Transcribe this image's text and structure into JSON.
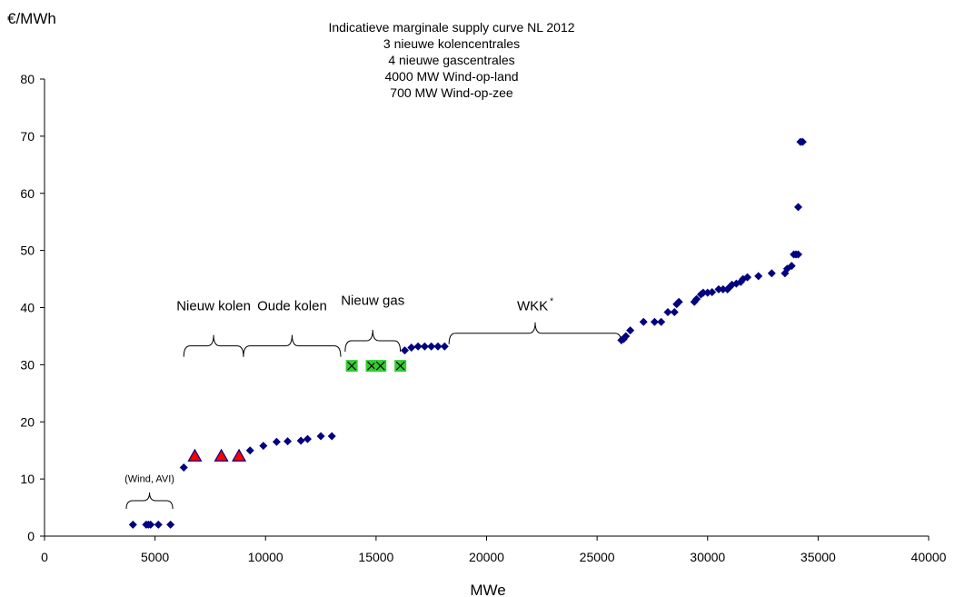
{
  "chart_data": {
    "type": "scatter",
    "title_lines": [
      "Indicatieve marginale supply curve NL 2012",
      "3 nieuwe kolencentrales",
      "4 nieuwe gascentrales",
      "4000 MW Wind-op-land",
      "700 MW Wind-op-zee"
    ],
    "xlabel": "MWe",
    "ylabel": "€/MWh",
    "xlim": [
      0,
      40000
    ],
    "ylim": [
      0,
      80
    ],
    "xticks": [
      "0",
      "5000",
      "10000",
      "15000",
      "20000",
      "25000",
      "30000",
      "35000",
      "40000"
    ],
    "yticks": [
      "0",
      "10",
      "20",
      "30",
      "40",
      "50",
      "60",
      "70",
      "80"
    ],
    "grid": false,
    "legend": "none",
    "colors": {
      "existing": "#000080",
      "new_coal": "#ff0000",
      "new_gas": "#33cc33",
      "new_coal_outline": "#000080"
    },
    "series": [
      {
        "marker": "diamond",
        "color": "#000080",
        "points": [
          [
            4000,
            2
          ],
          [
            4600,
            2
          ],
          [
            4700,
            2
          ],
          [
            4800,
            2
          ],
          [
            5150,
            2
          ],
          [
            5700,
            2
          ],
          [
            6300,
            12
          ],
          [
            9300,
            15
          ],
          [
            9900,
            15.8
          ],
          [
            10500,
            16.5
          ],
          [
            11000,
            16.6
          ],
          [
            11600,
            16.7
          ],
          [
            11900,
            17
          ],
          [
            12500,
            17.5
          ],
          [
            13000,
            17.5
          ],
          [
            16300,
            32.5
          ],
          [
            16600,
            33
          ],
          [
            16900,
            33.2
          ],
          [
            17200,
            33.2
          ],
          [
            17500,
            33.2
          ],
          [
            17800,
            33.2
          ],
          [
            18100,
            33.2
          ],
          [
            26100,
            34.3
          ],
          [
            26200,
            34.5
          ],
          [
            26300,
            35
          ],
          [
            26500,
            36
          ],
          [
            27100,
            37.5
          ],
          [
            27600,
            37.5
          ],
          [
            27900,
            37.5
          ],
          [
            28200,
            39.2
          ],
          [
            28500,
            39.2
          ],
          [
            28600,
            40.6
          ],
          [
            28700,
            41
          ],
          [
            29400,
            41
          ],
          [
            29500,
            41.5
          ],
          [
            29700,
            42.3
          ],
          [
            29800,
            42.6
          ],
          [
            30000,
            42.6
          ],
          [
            30200,
            42.7
          ],
          [
            30500,
            43.2
          ],
          [
            30700,
            43.2
          ],
          [
            30900,
            43.2
          ],
          [
            31000,
            43.6
          ],
          [
            31100,
            44
          ],
          [
            31300,
            44.2
          ],
          [
            31500,
            44.5
          ],
          [
            31600,
            45
          ],
          [
            31800,
            45.3
          ],
          [
            32300,
            45.5
          ],
          [
            32900,
            46
          ],
          [
            33500,
            46
          ],
          [
            33600,
            46.8
          ],
          [
            33800,
            47.3
          ],
          [
            33900,
            49.3
          ],
          [
            34000,
            49.3
          ],
          [
            34100,
            49.3
          ],
          [
            34100,
            57.6
          ],
          [
            34200,
            69
          ],
          [
            34300,
            69
          ]
        ]
      },
      {
        "marker": "triangle",
        "color": "#ff0000",
        "points": [
          [
            6800,
            14
          ],
          [
            8000,
            14
          ],
          [
            8800,
            14
          ]
        ]
      },
      {
        "marker": "x-square",
        "color": "#33cc33",
        "points": [
          [
            13900,
            29.8
          ],
          [
            14800,
            29.8
          ],
          [
            15200,
            29.8
          ],
          [
            16100,
            29.8
          ]
        ]
      }
    ],
    "annotations": [
      {
        "text": "(Wind, AVI)",
        "brace_x": [
          3700,
          5800
        ],
        "brace_y": 6.2,
        "text_y": 9.5,
        "small": true
      },
      {
        "text": "Nieuw kolen",
        "brace_x": [
          6300,
          9000
        ],
        "brace_y": 33.3,
        "text_y": 39.5
      },
      {
        "text": "Oude kolen",
        "brace_x": [
          9000,
          13400
        ],
        "brace_y": 33.3,
        "text_y": 39.5
      },
      {
        "text": "Nieuw gas",
        "brace_x": [
          13600,
          16100
        ],
        "brace_y": 34.2,
        "text_y": 40.5
      },
      {
        "text": "WKK",
        "superscript": "*",
        "brace_x": [
          18300,
          26100
        ],
        "brace_y": 35.5,
        "text_y": 39.5
      }
    ]
  }
}
